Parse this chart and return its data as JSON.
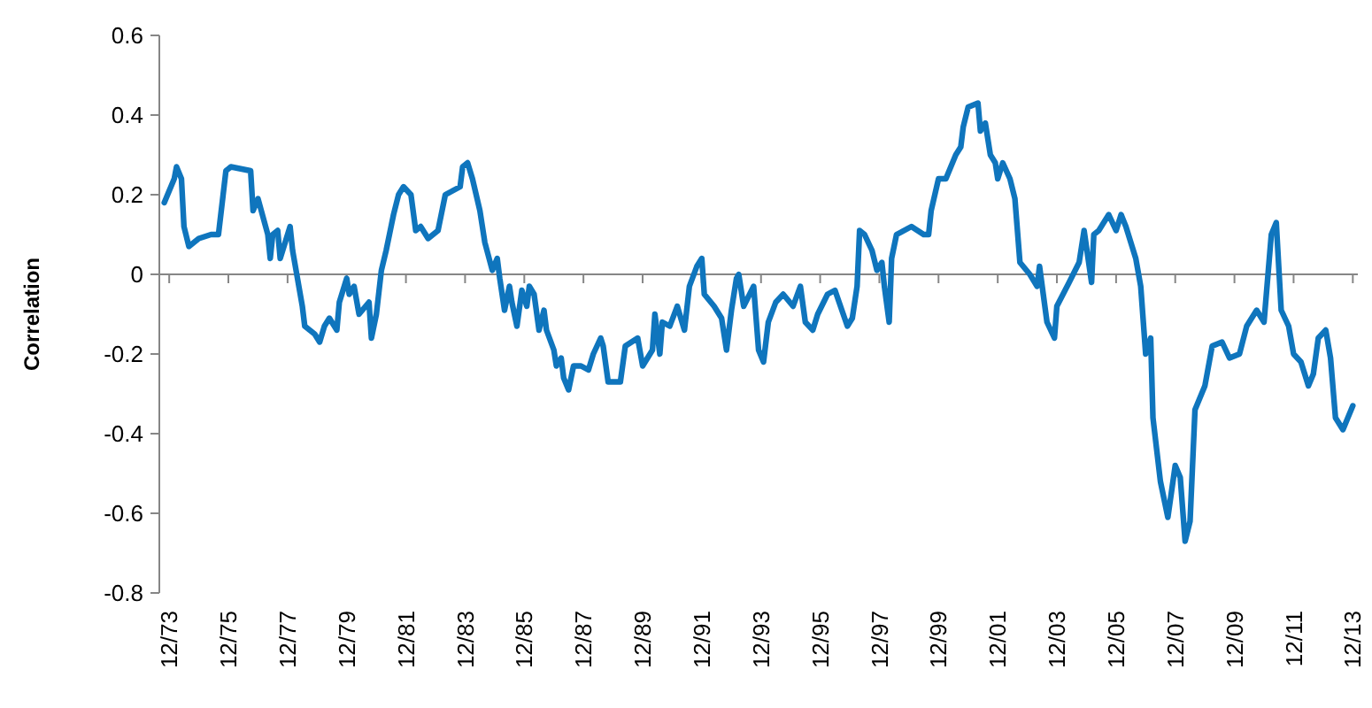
{
  "chart_data": {
    "type": "line",
    "ylabel": "Correlation",
    "ylim": [
      -0.8,
      0.6
    ],
    "yticks": [
      -0.8,
      -0.6,
      -0.4,
      -0.2,
      0,
      0.2,
      0.4,
      0.6
    ],
    "xlim": [
      "1973-08",
      "2014-02"
    ],
    "xticks": [
      {
        "value": "1973-12",
        "label": "12/73"
      },
      {
        "value": "1975-12",
        "label": "12/75"
      },
      {
        "value": "1977-12",
        "label": "12/77"
      },
      {
        "value": "1979-12",
        "label": "12/79"
      },
      {
        "value": "1981-12",
        "label": "12/81"
      },
      {
        "value": "1983-12",
        "label": "12/83"
      },
      {
        "value": "1985-12",
        "label": "12/85"
      },
      {
        "value": "1987-12",
        "label": "12/87"
      },
      {
        "value": "1989-12",
        "label": "12/89"
      },
      {
        "value": "1991-12",
        "label": "12/91"
      },
      {
        "value": "1993-12",
        "label": "12/93"
      },
      {
        "value": "1995-12",
        "label": "12/95"
      },
      {
        "value": "1997-12",
        "label": "12/97"
      },
      {
        "value": "1999-12",
        "label": "12/99"
      },
      {
        "value": "2001-12",
        "label": "12/01"
      },
      {
        "value": "2003-12",
        "label": "12/03"
      },
      {
        "value": "2005-12",
        "label": "12/05"
      },
      {
        "value": "2007-12",
        "label": "12/07"
      },
      {
        "value": "2009-12",
        "label": "12/09"
      },
      {
        "value": "2011-12",
        "label": "12/11"
      },
      {
        "value": "2013-12",
        "label": "12/13"
      }
    ],
    "marker": "none",
    "line_style": "solid",
    "series": [
      {
        "color": "#0f75bd",
        "x": [
          "1973-10",
          "1974-02",
          "1974-03",
          "1974-05",
          "1974-06",
          "1974-08",
          "1974-12",
          "1975-05",
          "1975-08",
          "1975-11",
          "1976-01",
          "1976-09",
          "1976-10",
          "1976-12",
          "1977-04",
          "1977-05",
          "1977-06",
          "1977-08",
          "1977-09",
          "1977-11",
          "1978-01",
          "1978-02",
          "1978-06",
          "1978-07",
          "1978-11",
          "1979-01",
          "1979-03",
          "1979-05",
          "1979-08",
          "1979-09",
          "1979-12",
          "1980-01",
          "1980-03",
          "1980-05",
          "1980-09",
          "1980-10",
          "1980-12",
          "1981-02",
          "1981-04",
          "1981-07",
          "1981-09",
          "1981-11",
          "1982-02",
          "1982-04",
          "1982-06",
          "1982-09",
          "1983-01",
          "1983-04",
          "1983-10",
          "1983-11",
          "1984-01",
          "1984-03",
          "1984-06",
          "1984-08",
          "1984-11",
          "1985-01",
          "1985-02",
          "1985-04",
          "1985-06",
          "1985-07",
          "1985-09",
          "1985-11",
          "1986-01",
          "1986-02",
          "1986-04",
          "1986-06",
          "1986-08",
          "1986-09",
          "1986-12",
          "1987-01",
          "1987-03",
          "1987-04",
          "1987-06",
          "1987-08",
          "1987-11",
          "1988-02",
          "1988-04",
          "1988-07",
          "1988-08",
          "1988-10",
          "1989-03",
          "1989-05",
          "1989-10",
          "1989-12",
          "1990-04",
          "1990-05",
          "1990-07",
          "1990-08",
          "1990-11",
          "1991-02",
          "1991-05",
          "1991-07",
          "1991-10",
          "1991-12",
          "1992-01",
          "1992-05",
          "1992-08",
          "1992-10",
          "1992-12",
          "1993-02",
          "1993-03",
          "1993-05",
          "1993-09",
          "1993-11",
          "1994-01",
          "1994-03",
          "1994-06",
          "1994-09",
          "1995-01",
          "1995-04",
          "1995-06",
          "1995-09",
          "1995-11",
          "1996-03",
          "1996-06",
          "1996-11",
          "1997-01",
          "1997-03",
          "1997-04",
          "1997-06",
          "1997-09",
          "1997-11",
          "1998-01",
          "1998-02",
          "1998-04",
          "1998-05",
          "1998-07",
          "1999-01",
          "1999-06",
          "1999-08",
          "1999-09",
          "1999-12",
          "2000-03",
          "2000-07",
          "2000-09",
          "2000-10",
          "2000-12",
          "2001-04",
          "2001-05",
          "2001-07",
          "2001-09",
          "2001-11",
          "2001-12",
          "2002-02",
          "2002-05",
          "2002-07",
          "2002-09",
          "2003-01",
          "2003-04",
          "2003-05",
          "2003-08",
          "2003-11",
          "2003-12",
          "2004-05",
          "2004-09",
          "2004-11",
          "2005-02",
          "2005-03",
          "2005-05",
          "2005-09",
          "2005-12",
          "2006-02",
          "2006-04",
          "2006-08",
          "2006-10",
          "2006-12",
          "2007-02",
          "2007-03",
          "2007-06",
          "2007-09",
          "2007-12",
          "2008-02",
          "2008-04",
          "2008-06",
          "2008-08",
          "2008-12",
          "2009-03",
          "2009-07",
          "2009-10",
          "2010-02",
          "2010-05",
          "2010-09",
          "2010-12",
          "2011-03",
          "2011-05",
          "2011-07",
          "2011-10",
          "2011-12",
          "2012-03",
          "2012-06",
          "2012-08",
          "2012-10",
          "2013-01",
          "2013-03",
          "2013-05",
          "2013-08",
          "2013-12"
        ],
        "values": [
          0.18,
          0.24,
          0.27,
          0.24,
          0.12,
          0.07,
          0.09,
          0.1,
          0.1,
          0.26,
          0.27,
          0.26,
          0.16,
          0.19,
          0.1,
          0.04,
          0.1,
          0.11,
          0.04,
          0.08,
          0.12,
          0.06,
          -0.08,
          -0.13,
          -0.15,
          -0.17,
          -0.13,
          -0.11,
          -0.14,
          -0.07,
          -0.01,
          -0.05,
          -0.03,
          -0.1,
          -0.07,
          -0.16,
          -0.1,
          0.01,
          0.06,
          0.15,
          0.2,
          0.22,
          0.2,
          0.11,
          0.12,
          0.09,
          0.11,
          0.2,
          0.22,
          0.27,
          0.28,
          0.24,
          0.16,
          0.08,
          0.01,
          0.04,
          -0.01,
          -0.09,
          -0.03,
          -0.07,
          -0.13,
          -0.04,
          -0.08,
          -0.03,
          -0.05,
          -0.14,
          -0.09,
          -0.14,
          -0.19,
          -0.23,
          -0.21,
          -0.26,
          -0.29,
          -0.23,
          -0.23,
          -0.24,
          -0.2,
          -0.16,
          -0.18,
          -0.27,
          -0.27,
          -0.18,
          -0.16,
          -0.23,
          -0.19,
          -0.1,
          -0.2,
          -0.12,
          -0.13,
          -0.08,
          -0.14,
          -0.03,
          0.02,
          0.04,
          -0.05,
          -0.08,
          -0.11,
          -0.19,
          -0.09,
          -0.01,
          0.0,
          -0.08,
          -0.03,
          -0.19,
          -0.22,
          -0.12,
          -0.07,
          -0.05,
          -0.08,
          -0.03,
          -0.12,
          -0.14,
          -0.1,
          -0.05,
          -0.04,
          -0.13,
          -0.11,
          -0.03,
          0.11,
          0.1,
          0.06,
          0.01,
          0.03,
          -0.03,
          -0.12,
          0.04,
          0.1,
          0.12,
          0.1,
          0.1,
          0.16,
          0.24,
          0.24,
          0.3,
          0.32,
          0.37,
          0.42,
          0.43,
          0.36,
          0.38,
          0.3,
          0.28,
          0.24,
          0.28,
          0.24,
          0.19,
          0.03,
          0.0,
          -0.03,
          0.02,
          -0.12,
          -0.16,
          -0.08,
          -0.02,
          0.03,
          0.11,
          -0.02,
          0.1,
          0.11,
          0.15,
          0.11,
          0.15,
          0.12,
          0.04,
          -0.03,
          -0.2,
          -0.16,
          -0.36,
          -0.52,
          -0.61,
          -0.48,
          -0.51,
          -0.67,
          -0.62,
          -0.34,
          -0.28,
          -0.18,
          -0.17,
          -0.21,
          -0.2,
          -0.13,
          -0.09,
          -0.12,
          0.1,
          0.13,
          -0.09,
          -0.13,
          -0.2,
          -0.22,
          -0.28,
          -0.25,
          -0.16,
          -0.14,
          -0.21,
          -0.36,
          -0.39,
          -0.33
        ]
      }
    ]
  }
}
